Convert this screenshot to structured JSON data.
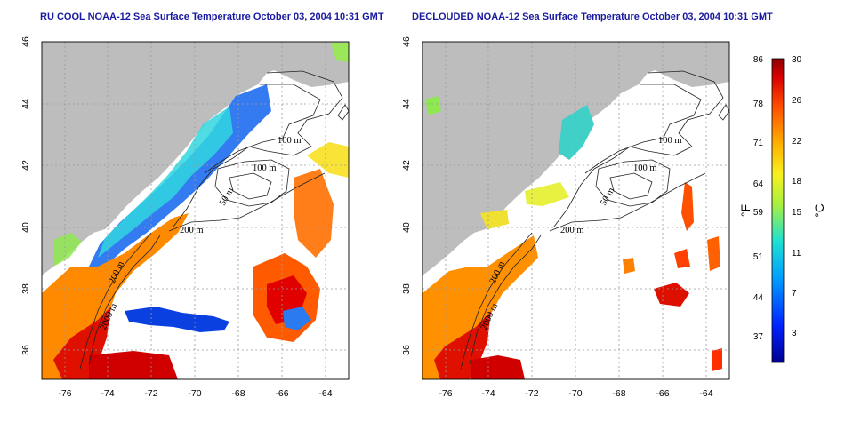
{
  "panels": [
    {
      "id": "left",
      "title": "RU COOL NOAA-12 Sea Surface Temperature October 03, 2004 10:31 GMT",
      "clouded": true
    },
    {
      "id": "right",
      "title": "DECLOUDED NOAA-12 Sea Surface Temperature October 03, 2004 10:31 GMT",
      "clouded": false
    }
  ],
  "axes": {
    "lon_ticks": [
      "-76",
      "-74",
      "-72",
      "-70",
      "-68",
      "-66",
      "-64"
    ],
    "lat_ticks": [
      "46",
      "44",
      "42",
      "40",
      "38",
      "36"
    ]
  },
  "contour_labels": [
    "100 m",
    "100 m",
    "50 m",
    "200 m",
    "200 m",
    "2000 m"
  ],
  "colorbar": {
    "fahrenheit_ticks": [
      "86",
      "78",
      "71",
      "64",
      "59",
      "51",
      "44",
      "37"
    ],
    "celsius_ticks": [
      "30",
      "26",
      "22",
      "18",
      "15",
      "11",
      "7",
      "3"
    ],
    "fahrenheit_unit": "°F",
    "celsius_unit": "°C"
  },
  "colors": {
    "land": "#bdbdbd",
    "cold": "#0000a0",
    "warm": "#a00000",
    "title": "#1a1aa0"
  }
}
